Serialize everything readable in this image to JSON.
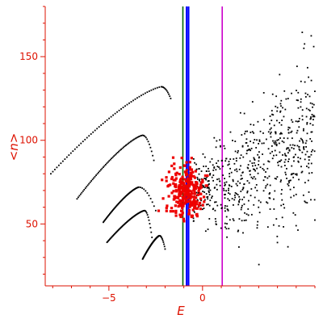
{
  "chart_data": {
    "type": "scatter",
    "title": "",
    "xlabel": "E",
    "ylabel": "<n>",
    "xlim": [
      -8.4,
      6.0
    ],
    "ylim": [
      13,
      180
    ],
    "xticks": [
      -5,
      0
    ],
    "yticks": [
      50,
      100,
      150
    ],
    "grid": false,
    "axis_color": "#dd1100",
    "vertical_lines": [
      {
        "x": -1.05,
        "color": "#006600"
      },
      {
        "x": -0.85,
        "color": "#0000ff"
      },
      {
        "x": -0.75,
        "color": "#0000ff"
      },
      {
        "x": 1.05,
        "color": "#cc00cc"
      }
    ],
    "series": [
      {
        "kind": "ladder_branches",
        "color": "#000000",
        "branches": [
          {
            "start": [
              -8.1,
              80
            ],
            "peak": [
              -2.2,
              132
            ],
            "end": [
              -1.7,
              125
            ]
          },
          {
            "start": [
              -6.7,
              65
            ],
            "peak": [
              -3.2,
              103
            ],
            "end": [
              -2.6,
              88
            ]
          },
          {
            "start": [
              -5.3,
              51
            ],
            "peak": [
              -3.4,
              72
            ],
            "end": [
              -2.5,
              58
            ]
          },
          {
            "start": [
              -5.1,
              39
            ],
            "peak": [
              -3.1,
              58
            ],
            "end": [
              -2.7,
              42
            ]
          },
          {
            "start": [
              -3.2,
              29
            ],
            "peak": [
              -2.3,
              43
            ],
            "end": [
              -2.0,
              35
            ]
          }
        ]
      },
      {
        "kind": "scatter_cloud",
        "color": "#000000",
        "x_range": [
          -0.5,
          6.0
        ],
        "center_trend": [
          [
            -0.5,
            70
          ],
          [
            2.0,
            78
          ],
          [
            4.5,
            90
          ],
          [
            6.0,
            110
          ]
        ],
        "spread": 18,
        "count": 650
      },
      {
        "kind": "scatter_cloud",
        "color": "#ee0000",
        "center": [
          -0.9,
          70
        ],
        "x_spread": 0.9,
        "y_spread": 13,
        "count": 280
      }
    ]
  }
}
